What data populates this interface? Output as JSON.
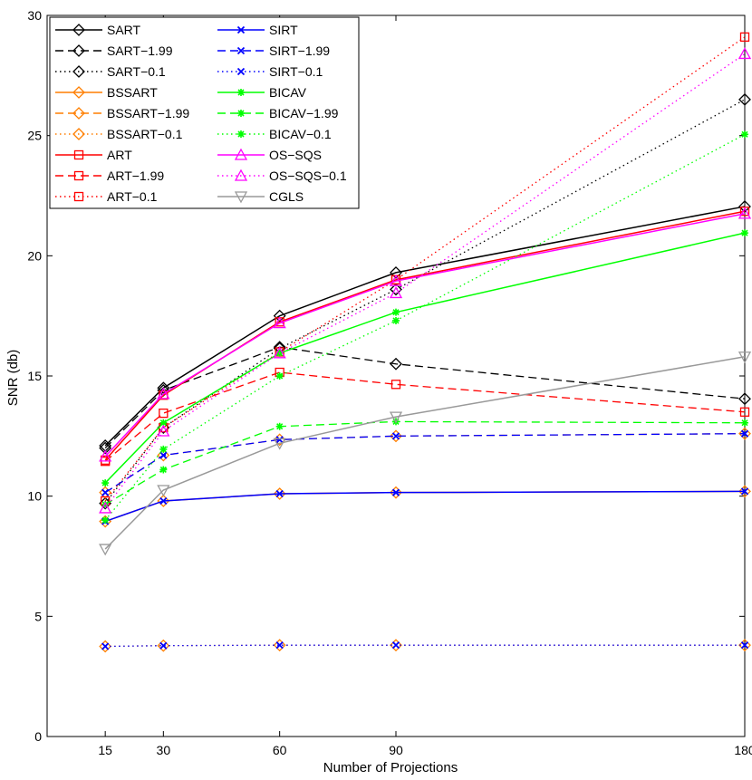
{
  "chart_data": {
    "type": "line",
    "title": "",
    "xlabel": "Number of Projections",
    "ylabel": "SNR (db)",
    "x": [
      15,
      30,
      60,
      90,
      180
    ],
    "xlim": [
      0,
      180
    ],
    "ylim": [
      0,
      30
    ],
    "xticks": [
      "15",
      "30",
      "60",
      "90",
      "180"
    ],
    "yticks": [
      "0",
      "5",
      "10",
      "15",
      "20",
      "25",
      "30"
    ],
    "grid": false,
    "legend_position": "top-left",
    "series": [
      {
        "name": "SART",
        "color": "#000000",
        "line": "solid",
        "marker": "diamond",
        "values": [
          12.1,
          14.5,
          17.5,
          19.3,
          22.05
        ]
      },
      {
        "name": "SART−1.99",
        "color": "#000000",
        "line": "dashed",
        "marker": "diamond",
        "values": [
          12.0,
          14.4,
          16.2,
          15.5,
          14.05
        ]
      },
      {
        "name": "SART−0.1",
        "color": "#000000",
        "line": "dotted",
        "marker": "diamond",
        "values": [
          9.7,
          12.85,
          16.15,
          18.6,
          26.5
        ]
      },
      {
        "name": "BSSART",
        "color": "#ff7f00",
        "line": "solid",
        "marker": "diamond",
        "values": [
          8.95,
          9.8,
          10.1,
          10.15,
          10.2
        ]
      },
      {
        "name": "BSSART−1.99",
        "color": "#ff7f00",
        "line": "dashed",
        "marker": "diamond",
        "values": [
          10.15,
          11.7,
          12.35,
          12.5,
          12.6
        ]
      },
      {
        "name": "BSSART−0.1",
        "color": "#ff7f00",
        "line": "dotted",
        "marker": "diamond",
        "values": [
          3.75,
          3.78,
          3.8,
          3.8,
          3.8
        ]
      },
      {
        "name": "ART",
        "color": "#ff0000",
        "line": "solid",
        "marker": "square",
        "values": [
          11.5,
          14.2,
          17.25,
          19.0,
          21.85
        ]
      },
      {
        "name": "ART−1.99",
        "color": "#ff0000",
        "line": "dashed",
        "marker": "square",
        "values": [
          11.45,
          13.45,
          15.15,
          14.65,
          13.5
        ]
      },
      {
        "name": "ART−0.1",
        "color": "#ff0000",
        "line": "dotted",
        "marker": "square",
        "values": [
          9.8,
          12.85,
          16.0,
          19.0,
          29.1
        ]
      },
      {
        "name": "SIRT",
        "color": "#0000ff",
        "line": "solid",
        "marker": "x",
        "values": [
          8.95,
          9.8,
          10.1,
          10.15,
          10.2
        ]
      },
      {
        "name": "SIRT−1.99",
        "color": "#0000ff",
        "line": "dashed",
        "marker": "x",
        "values": [
          10.15,
          11.7,
          12.35,
          12.5,
          12.6
        ]
      },
      {
        "name": "SIRT−0.1",
        "color": "#0000ff",
        "line": "dotted",
        "marker": "x",
        "values": [
          3.75,
          3.78,
          3.8,
          3.8,
          3.8
        ]
      },
      {
        "name": "BICAV",
        "color": "#00ff00",
        "line": "solid",
        "marker": "asterisk",
        "values": [
          10.55,
          13.05,
          15.95,
          17.65,
          20.95
        ]
      },
      {
        "name": "BICAV−1.99",
        "color": "#00ff00",
        "line": "dashed",
        "marker": "asterisk",
        "values": [
          9.65,
          11.1,
          12.9,
          13.1,
          13.05
        ]
      },
      {
        "name": "BICAV−0.1",
        "color": "#00ff00",
        "line": "dotted",
        "marker": "asterisk",
        "values": [
          9.0,
          11.95,
          15.0,
          17.3,
          25.05
        ]
      },
      {
        "name": "OS−SQS",
        "color": "#ff00ff",
        "line": "solid",
        "marker": "triangle-up",
        "values": [
          11.65,
          14.25,
          17.2,
          18.95,
          21.75
        ]
      },
      {
        "name": "OS−SQS−0.1",
        "color": "#ff00ff",
        "line": "dotted",
        "marker": "triangle-up",
        "values": [
          9.5,
          12.7,
          15.95,
          18.45,
          28.4
        ]
      },
      {
        "name": "CGLS",
        "color": "#999999",
        "line": "solid",
        "marker": "triangle-down",
        "values": [
          7.8,
          10.25,
          12.2,
          13.3,
          15.8
        ]
      }
    ]
  }
}
